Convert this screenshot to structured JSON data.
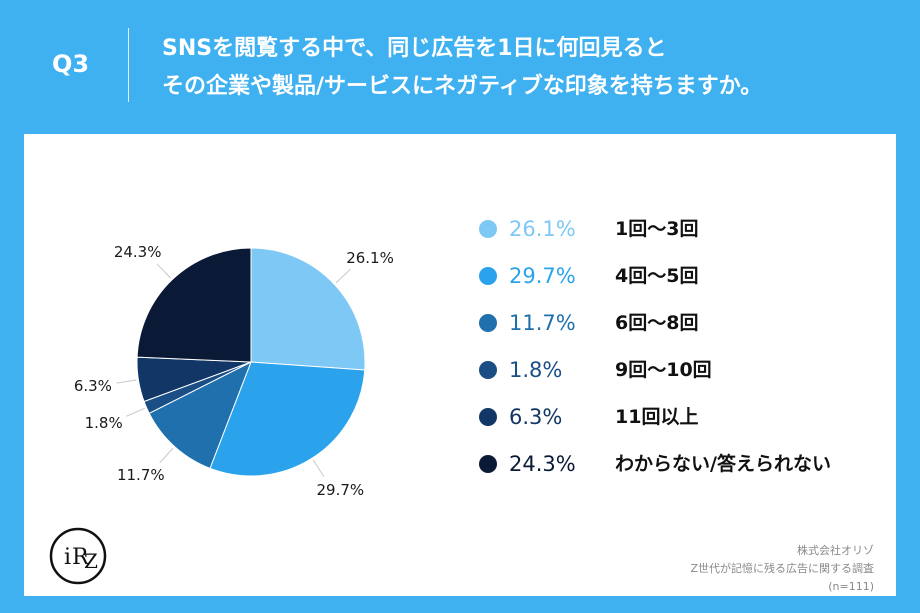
{
  "header": {
    "question_label": "Q3",
    "question_line1": "SNSを閲覧する中で、同じ広告を1日に何回見ると",
    "question_line2": "その企業や製品/サービスにネガティブな印象を持ちますか。"
  },
  "colors": {
    "background": "#3fb0f0",
    "card": "#ffffff",
    "series": [
      "#7ec8f5",
      "#2aa3ec",
      "#1f70ad",
      "#1a4e85",
      "#123766",
      "#0a1a36"
    ]
  },
  "chart_data": {
    "type": "pie",
    "title": "",
    "categories": [
      "1回～3回",
      "4回～5回",
      "6回～8回",
      "9回～10回",
      "11回以上",
      "わからない/答えられない"
    ],
    "values": [
      26.1,
      29.7,
      11.7,
      1.8,
      6.3,
      24.3
    ],
    "value_labels": [
      "26.1%",
      "29.7%",
      "11.7%",
      "1.8%",
      "6.3%",
      "24.3%"
    ],
    "start": "12 o'clock",
    "direction": "clockwise",
    "legend_position": "right"
  },
  "footer": {
    "company": "株式会社オリゾ",
    "survey": "Z世代が記憶に残る広告に関する調査",
    "sample": "(n=111)"
  },
  "logo_text": "ORZ"
}
